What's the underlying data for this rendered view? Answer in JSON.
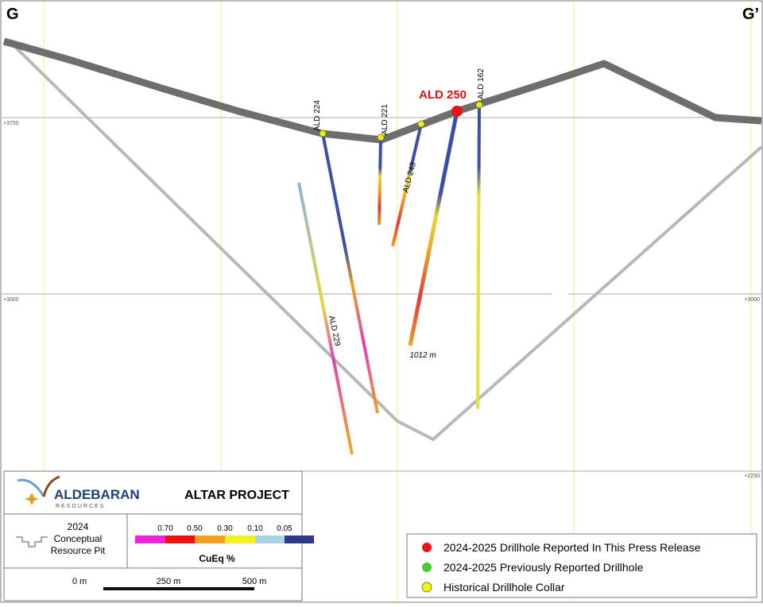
{
  "section": {
    "left_label": "G",
    "right_label": "G’"
  },
  "elevations_left": [
    "+3750",
    "+3000"
  ],
  "elevations_right": [
    "+3000",
    "+2250"
  ],
  "drillholes": [
    {
      "label": "ALD 224"
    },
    {
      "label": "ALD 221"
    },
    {
      "label": "ALD 243"
    },
    {
      "label": "ALD 250",
      "depth": "1012 m"
    },
    {
      "label": "ALD 162"
    },
    {
      "label": "ALD 229"
    }
  ],
  "title_block": {
    "company": "ALDEBARAN",
    "company_sub": "RESOURCES",
    "project": "ALTAR PROJECT",
    "pit_label": [
      "2024",
      "Conceptual",
      "Resource Pit"
    ]
  },
  "grade_scale": {
    "thresholds": [
      "0.70",
      "0.50",
      "0.30",
      "0.10",
      "0.05"
    ],
    "title": "CuEq %"
  },
  "scale_bar": {
    "labels": [
      "0 m",
      "250 m",
      "500 m"
    ]
  },
  "legend": {
    "items": [
      "2024-2025 Drillhole Reported In This Press Release",
      "2024-2025 Previously Reported Drillhole",
      "Historical Drillhole Collar"
    ]
  }
}
